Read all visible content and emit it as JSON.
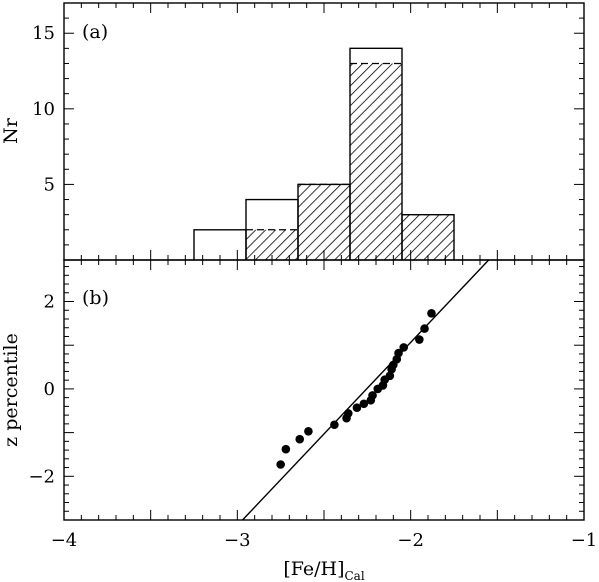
{
  "chart_data": [
    {
      "type": "bar",
      "panel_label": "(a)",
      "ylabel": "Nr",
      "xlabel": "",
      "xlim": [
        -4,
        -1
      ],
      "ylim": [
        0,
        17
      ],
      "yticks": [
        5,
        10,
        15
      ],
      "grid": false,
      "series": [
        {
          "style": "outline",
          "bins": [
            {
              "x0": -3.25,
              "x1": -2.95,
              "value": 2
            },
            {
              "x0": -2.95,
              "x1": -2.65,
              "value": 4
            },
            {
              "x0": -2.65,
              "x1": -2.35,
              "value": 5
            },
            {
              "x0": -2.35,
              "x1": -2.05,
              "value": 14
            },
            {
              "x0": -2.05,
              "x1": -1.75,
              "value": 3
            }
          ]
        },
        {
          "style": "hatched",
          "bins": [
            {
              "x0": -2.95,
              "x1": -2.65,
              "value": 2
            },
            {
              "x0": -2.65,
              "x1": -2.35,
              "value": 5
            },
            {
              "x0": -2.35,
              "x1": -2.05,
              "value": 13
            },
            {
              "x0": -2.05,
              "x1": -1.75,
              "value": 3
            }
          ]
        }
      ]
    },
    {
      "type": "scatter",
      "panel_label": "(b)",
      "ylabel": "z percentile",
      "xlabel_main": "[Fe/H]",
      "xlabel_sub": "Cal",
      "xlim": [
        -4,
        -1
      ],
      "ylim": [
        -3,
        2.95
      ],
      "xticks": [
        -4,
        -3,
        -2,
        -1
      ],
      "yticks": [
        -2,
        0,
        2
      ],
      "grid": false,
      "points": [
        {
          "x": -2.75,
          "y": -1.73
        },
        {
          "x": -2.72,
          "y": -1.38
        },
        {
          "x": -2.64,
          "y": -1.15
        },
        {
          "x": -2.59,
          "y": -0.97
        },
        {
          "x": -2.44,
          "y": -0.82
        },
        {
          "x": -2.37,
          "y": -0.67
        },
        {
          "x": -2.36,
          "y": -0.56
        },
        {
          "x": -2.31,
          "y": -0.43
        },
        {
          "x": -2.27,
          "y": -0.34
        },
        {
          "x": -2.23,
          "y": -0.26
        },
        {
          "x": -2.22,
          "y": -0.15
        },
        {
          "x": -2.19,
          "y": 0.0
        },
        {
          "x": -2.16,
          "y": 0.08
        },
        {
          "x": -2.15,
          "y": 0.21
        },
        {
          "x": -2.12,
          "y": 0.3
        },
        {
          "x": -2.11,
          "y": 0.45
        },
        {
          "x": -2.1,
          "y": 0.55
        },
        {
          "x": -2.08,
          "y": 0.68
        },
        {
          "x": -2.07,
          "y": 0.82
        },
        {
          "x": -2.04,
          "y": 0.95
        },
        {
          "x": -1.95,
          "y": 1.13
        },
        {
          "x": -1.92,
          "y": 1.38
        },
        {
          "x": -1.88,
          "y": 1.73
        }
      ],
      "fit_line": {
        "x": [
          -2.97,
          -1.55
        ],
        "y": [
          -3,
          2.95
        ]
      }
    }
  ]
}
